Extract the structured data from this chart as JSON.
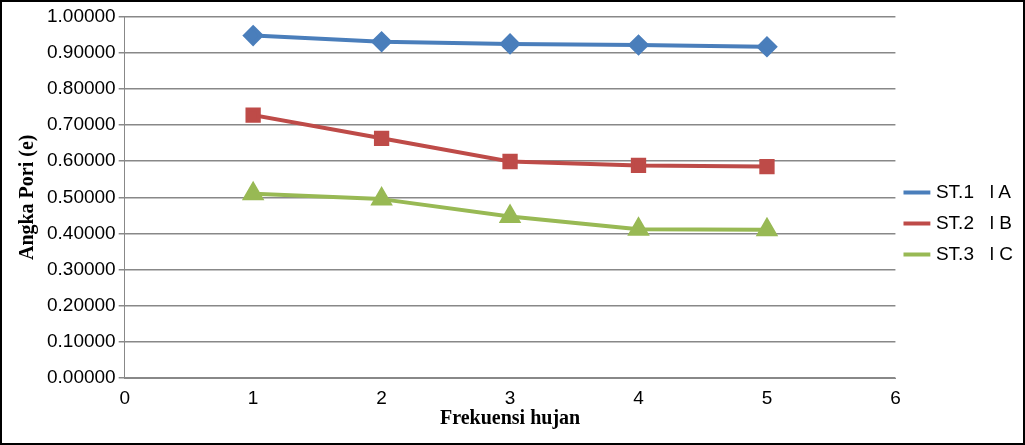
{
  "chart_data": {
    "type": "line",
    "xlabel": "Frekuensi hujan",
    "ylabel": "Angka Pori (e)",
    "x": [
      1,
      2,
      3,
      4,
      5
    ],
    "series": [
      {
        "name": "ST.1   l A",
        "color": "#4a7ebb",
        "values": [
          0.947,
          0.93,
          0.924,
          0.921,
          0.916
        ],
        "marker": "diamond"
      },
      {
        "name": "ST.2   l B",
        "color": "#be4b48",
        "values": [
          0.727,
          0.663,
          0.599,
          0.588,
          0.585
        ],
        "marker": "square"
      },
      {
        "name": "ST.3   l C",
        "color": "#98b954",
        "values": [
          0.51,
          0.495,
          0.447,
          0.412,
          0.41
        ],
        "marker": "triangle"
      }
    ],
    "xlim": [
      0,
      6
    ],
    "xticks": [
      0,
      1,
      2,
      3,
      4,
      5,
      6
    ],
    "ylim": [
      0,
      1
    ],
    "yticks": [
      {
        "value": 0,
        "label": "0.00000"
      },
      {
        "value": 0.1,
        "label": "0.10000"
      },
      {
        "value": 0.2,
        "label": "0.20000"
      },
      {
        "value": 0.3,
        "label": "0.30000"
      },
      {
        "value": 0.4,
        "label": "0.40000"
      },
      {
        "value": 0.5,
        "label": "0.50000"
      },
      {
        "value": 0.6,
        "label": "0.60000"
      },
      {
        "value": 0.7,
        "label": "0.70000"
      },
      {
        "value": 0.8,
        "label": "0.80000"
      },
      {
        "value": 0.9,
        "label": "0.90000"
      },
      {
        "value": 1,
        "label": "1.00000"
      }
    ],
    "grid": "y",
    "legend": "right",
    "line_style": "solid"
  }
}
